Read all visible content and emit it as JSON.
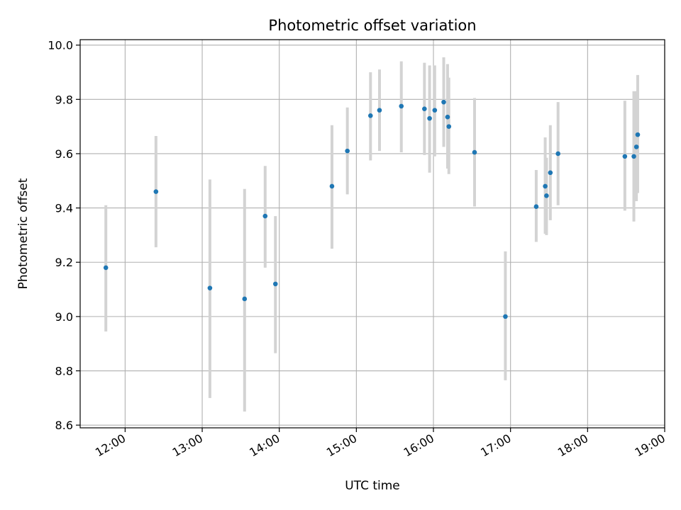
{
  "chart_data": {
    "type": "scatter",
    "title": "Photometric offset variation",
    "xlabel": "UTC time",
    "ylabel": "Photometric offset",
    "xlim": [
      "11:25",
      "19:00"
    ],
    "ylim": [
      8.59,
      10.02
    ],
    "grid": true,
    "x_ticks": [
      "12:00",
      "13:00",
      "14:00",
      "15:00",
      "16:00",
      "17:00",
      "18:00",
      "19:00"
    ],
    "y_ticks": [
      "8.6",
      "8.8",
      "9.0",
      "9.2",
      "9.4",
      "9.6",
      "9.8",
      "10.0"
    ],
    "colors": {
      "point": "#1f77b4",
      "errorbar": "#d3d3d3",
      "grid": "#b0b0b0"
    },
    "series": [
      {
        "points": [
          {
            "x": "11:45",
            "y": 9.18,
            "err_low": 8.945,
            "err_high": 9.41
          },
          {
            "x": "12:24",
            "y": 9.46,
            "err_low": 9.255,
            "err_high": 9.665
          },
          {
            "x": "13:06",
            "y": 9.105,
            "err_low": 8.7,
            "err_high": 9.505
          },
          {
            "x": "13:33",
            "y": 9.065,
            "err_low": 8.65,
            "err_high": 9.47
          },
          {
            "x": "13:49",
            "y": 9.37,
            "err_low": 9.18,
            "err_high": 9.555
          },
          {
            "x": "13:57",
            "y": 9.12,
            "err_low": 8.865,
            "err_high": 9.37
          },
          {
            "x": "14:41",
            "y": 9.48,
            "err_low": 9.25,
            "err_high": 9.705
          },
          {
            "x": "14:53",
            "y": 9.61,
            "err_low": 9.45,
            "err_high": 9.77
          },
          {
            "x": "15:11",
            "y": 9.74,
            "err_low": 9.575,
            "err_high": 9.9
          },
          {
            "x": "15:18",
            "y": 9.76,
            "err_low": 9.61,
            "err_high": 9.91
          },
          {
            "x": "15:35",
            "y": 9.775,
            "err_low": 9.605,
            "err_high": 9.94
          },
          {
            "x": "15:53",
            "y": 9.765,
            "err_low": 9.595,
            "err_high": 9.935
          },
          {
            "x": "15:57",
            "y": 9.73,
            "err_low": 9.53,
            "err_high": 9.925
          },
          {
            "x": "16:01",
            "y": 9.76,
            "err_low": 9.59,
            "err_high": 9.925
          },
          {
            "x": "16:08",
            "y": 9.79,
            "err_low": 9.625,
            "err_high": 9.955
          },
          {
            "x": "16:11",
            "y": 9.735,
            "err_low": 9.545,
            "err_high": 9.93
          },
          {
            "x": "16:12",
            "y": 9.7,
            "err_low": 9.525,
            "err_high": 9.88
          },
          {
            "x": "16:32",
            "y": 9.605,
            "err_low": 9.405,
            "err_high": 9.805
          },
          {
            "x": "16:56",
            "y": 9.0,
            "err_low": 8.765,
            "err_high": 9.24
          },
          {
            "x": "17:20",
            "y": 9.405,
            "err_low": 9.275,
            "err_high": 9.54
          },
          {
            "x": "17:27",
            "y": 9.48,
            "err_low": 9.305,
            "err_high": 9.66
          },
          {
            "x": "17:28",
            "y": 9.445,
            "err_low": 9.3,
            "err_high": 9.585
          },
          {
            "x": "17:31",
            "y": 9.53,
            "err_low": 9.355,
            "err_high": 9.705
          },
          {
            "x": "17:37",
            "y": 9.6,
            "err_low": 9.41,
            "err_high": 9.79
          },
          {
            "x": "18:29",
            "y": 9.59,
            "err_low": 9.39,
            "err_high": 9.795
          },
          {
            "x": "18:36",
            "y": 9.59,
            "err_low": 9.35,
            "err_high": 9.83
          },
          {
            "x": "18:38",
            "y": 9.625,
            "err_low": 9.425,
            "err_high": 9.83
          },
          {
            "x": "18:39",
            "y": 9.67,
            "err_low": 9.455,
            "err_high": 9.89
          }
        ]
      }
    ]
  }
}
